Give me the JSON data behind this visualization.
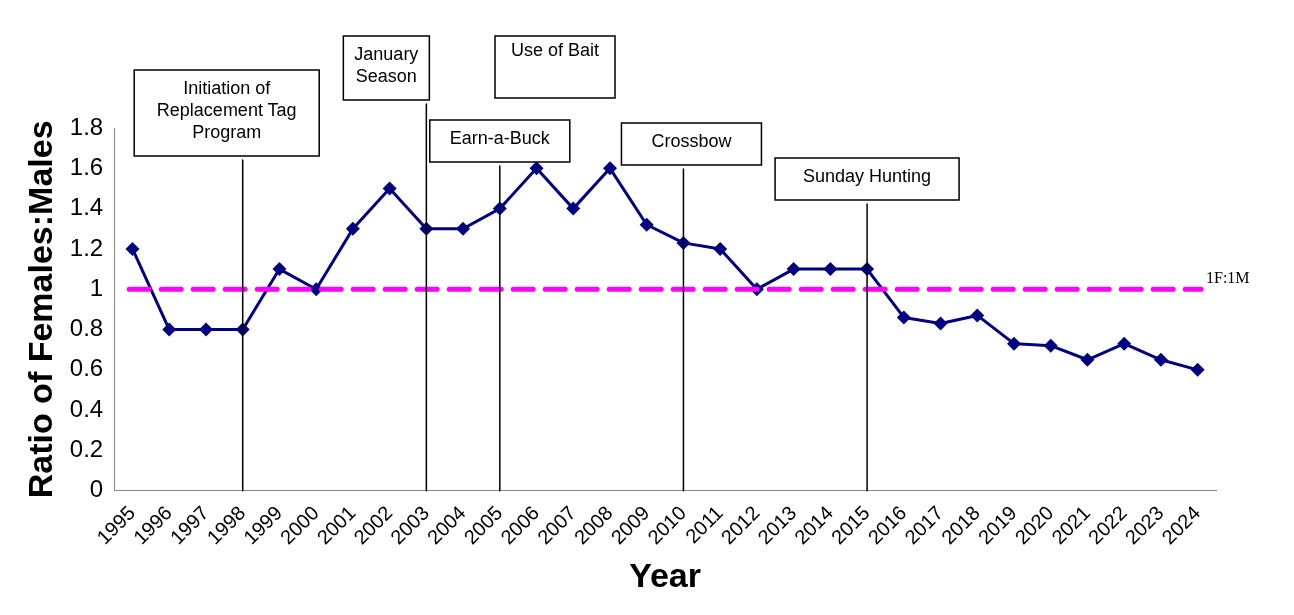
{
  "chart_data": {
    "type": "line",
    "xlabel": "Year",
    "ylabel": "Ratio of Females:Males",
    "categories": [
      "1995",
      "1996",
      "1997",
      "1998",
      "1999",
      "2000",
      "2001",
      "2002",
      "2003",
      "2004",
      "2005",
      "2006",
      "2007",
      "2008",
      "2009",
      "2010",
      "2011",
      "2012",
      "2013",
      "2014",
      "2015",
      "2016",
      "2017",
      "2018",
      "2019",
      "2020",
      "2021",
      "2022",
      "2023",
      "2024"
    ],
    "series": [
      {
        "color": "#000080",
        "values": [
          1.2,
          0.8,
          0.8,
          0.8,
          1.1,
          1.0,
          1.3,
          1.5,
          1.3,
          1.3,
          1.4,
          1.6,
          1.4,
          1.6,
          1.32,
          1.23,
          1.2,
          1.0,
          1.1,
          1.1,
          1.1,
          0.86,
          0.83,
          0.87,
          0.73,
          0.72,
          0.65,
          0.73,
          0.65,
          0.6
        ]
      }
    ],
    "ylim": [
      0,
      1.8
    ],
    "yticks": [
      0,
      0.2,
      0.4,
      0.6,
      0.8,
      1,
      1.2,
      1.4,
      1.6,
      1.8
    ],
    "marker": "diamond",
    "line_style": "solid",
    "grid": false,
    "legend": false,
    "ref_lines": [
      {
        "axis": "y",
        "value": 1,
        "label": "1F:1M",
        "color": "#ff00ff",
        "line_style": "dashed"
      },
      {
        "axis": "x",
        "value": "1998",
        "label": "Initiation of Replacement Tag Program",
        "color": "#000000",
        "line_style": "solid"
      },
      {
        "axis": "x",
        "value": "2003",
        "label": "January Season",
        "color": "#000000",
        "line_style": "solid"
      },
      {
        "axis": "x",
        "value": "2005",
        "label": "Earn-a-Buck",
        "color": "#000000",
        "line_style": "solid"
      },
      {
        "axis": "x",
        "value": "2010",
        "label": "Crossbow",
        "color": "#000000",
        "line_style": "solid"
      },
      {
        "axis": "x",
        "value": "2015",
        "label": "Sunday Hunting",
        "color": "#000000",
        "line_style": "solid"
      }
    ],
    "annotations": [
      "Use of Bait"
    ]
  }
}
